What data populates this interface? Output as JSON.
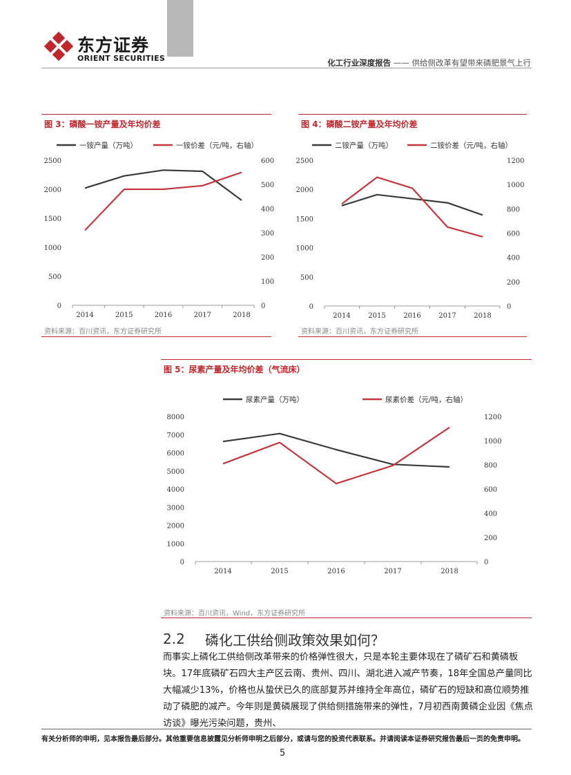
{
  "header": {
    "brand_cn": "东方证券",
    "brand_en": "ORIENT SECURITIES",
    "report_type": "化工行业深度报告",
    "report_sep": " —— ",
    "report_subtitle": "供给侧改革有望带来磷肥景气上行"
  },
  "colors": {
    "accent": "#c0272d",
    "dark_series": "#3a3a3a",
    "red_series": "#c6353b"
  },
  "figures": {
    "fig3": {
      "title": "图 3：磷酸一铵产量及年均价差",
      "source": "资料来源：百川资讯，东方证券研究所"
    },
    "fig4": {
      "title": "图 4：磷酸二铵产量及年均价差",
      "source": "资料来源：百川资讯，东方证券研究所"
    },
    "fig5": {
      "title": "图 5：尿素产量及年均价差（气流床）",
      "source": "资料来源：百川资讯，Wind，东方证券研究所"
    }
  },
  "chart_data": [
    {
      "id": "fig3",
      "type": "line",
      "x": [
        "2014",
        "2015",
        "2016",
        "2017",
        "2018"
      ],
      "series": [
        {
          "name": "一铵产量（万吨）",
          "axis": "left",
          "values": [
            2020,
            2230,
            2330,
            2310,
            1810
          ]
        },
        {
          "name": "一铵价差（元/吨，右轴）",
          "axis": "right",
          "values": [
            310,
            480,
            480,
            495,
            550
          ]
        }
      ],
      "y_left": {
        "min": 0,
        "max": 2500,
        "ticks": [
          "0",
          "500",
          "1000",
          "1500",
          "2000",
          "2500"
        ]
      },
      "y_right": {
        "min": 0,
        "max": 600,
        "ticks": [
          "0",
          "100",
          "200",
          "300",
          "400",
          "500",
          "600"
        ]
      }
    },
    {
      "id": "fig4",
      "type": "line",
      "x": [
        "2014",
        "2015",
        "2016",
        "2017",
        "2018"
      ],
      "series": [
        {
          "name": "二铵产量（万吨）",
          "axis": "left",
          "values": [
            1720,
            1910,
            1840,
            1770,
            1560
          ]
        },
        {
          "name": "二铵价差（元/吨，右轴）",
          "axis": "right",
          "values": [
            840,
            1060,
            970,
            650,
            570
          ]
        }
      ],
      "y_left": {
        "min": 0,
        "max": 2500,
        "ticks": [
          "0",
          "500",
          "1000",
          "1500",
          "2000",
          "2500"
        ]
      },
      "y_right": {
        "min": 0,
        "max": 1200,
        "ticks": [
          "0",
          "200",
          "400",
          "600",
          "800",
          "1000",
          "1200"
        ]
      }
    },
    {
      "id": "fig5",
      "type": "line",
      "x": [
        "2014",
        "2015",
        "2016",
        "2017",
        "2018"
      ],
      "series": [
        {
          "name": "尿素产量（万吨）",
          "axis": "left",
          "values": [
            6620,
            7060,
            6170,
            5360,
            5220
          ]
        },
        {
          "name": "尿素价差（元/吨，右轴）",
          "axis": "right",
          "values": [
            810,
            985,
            645,
            795,
            1110
          ]
        }
      ],
      "y_left": {
        "min": 0,
        "max": 8000,
        "ticks": [
          "0",
          "1000",
          "2000",
          "3000",
          "4000",
          "5000",
          "6000",
          "7000",
          "8000"
        ]
      },
      "y_right": {
        "min": 0,
        "max": 1200,
        "ticks": [
          "0",
          "200",
          "400",
          "600",
          "800",
          "1000",
          "1200"
        ]
      }
    }
  ],
  "section": {
    "number": "2.2",
    "title": "磷化工供给侧政策效果如何？",
    "paragraph": "而事实上磷化工供给侧改革带来的价格弹性很大，只是本轮主要体现在了磷矿石和黄磷板块。17年底磷矿石四大主产区云南、贵州、四川、湖北进入减产节奏，18年全国总产量同比大幅减少13%，价格也从蛰伏已久的底部复苏并维持全年高位，磷矿石的短缺和高位顺势推动了磷肥的减产。今年则是黄磷展现了供给侧措施带来的弹性，7月初西南黄磷企业因《焦点访谈》曝光污染问题，贵州、"
  },
  "footer": {
    "disclaimer": "有关分析师的申明，见本报告最后部分。其他重要信息披露见分析师申明之后部分，或请与您的投资代表联系。并请阅读本证券研究报告最后一页的免责申明。",
    "page": "5"
  }
}
